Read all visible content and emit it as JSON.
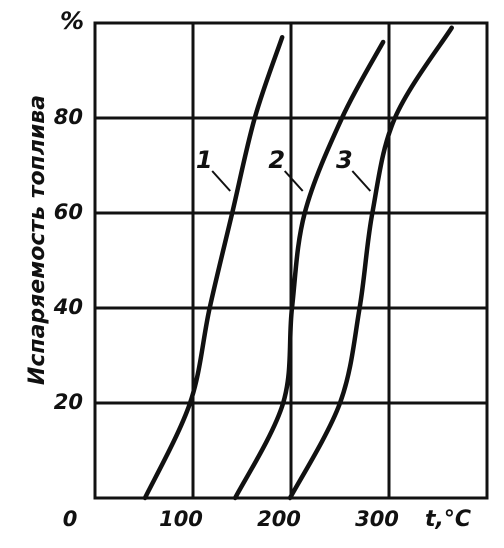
{
  "chart_data": {
    "type": "line",
    "y_label": "Испаряемость топлива",
    "y_unit": "%",
    "x_label": "t,°C",
    "xlim": [
      0,
      400
    ],
    "ylim": [
      0,
      100
    ],
    "xticks": [
      0,
      100,
      200,
      300
    ],
    "yticks": [
      20,
      40,
      60,
      80
    ],
    "grid": true,
    "series": [
      {
        "name": "1",
        "color": "#111111",
        "x": [
          51,
          97,
          117,
          140,
          163,
          191
        ],
        "values": [
          0,
          20,
          40,
          60,
          80,
          97
        ]
      },
      {
        "name": "2",
        "color": "#111111",
        "x": [
          143,
          192,
          201,
          214,
          252,
          294
        ],
        "values": [
          0,
          20,
          40,
          60,
          80,
          96
        ]
      },
      {
        "name": "3",
        "color": "#111111",
        "x": [
          199,
          250,
          270,
          283,
          306,
          364
        ],
        "values": [
          0,
          20,
          40,
          60,
          80,
          99
        ]
      }
    ]
  }
}
